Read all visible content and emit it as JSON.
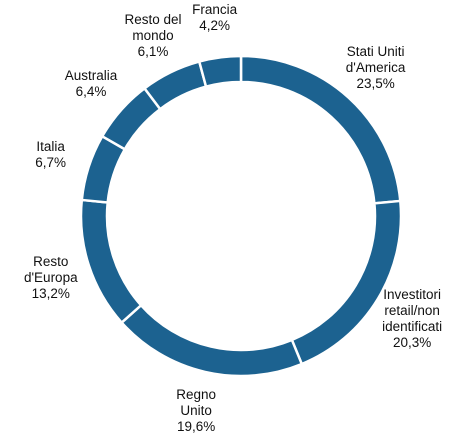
{
  "chart_data": {
    "type": "donut",
    "categories": [
      "Stati Uniti\nd'America",
      "Investitori\nretail/non\nidentificati",
      "Regno\nUnito",
      "Resto\nd'Europa",
      "Italia",
      "Australia",
      "Resto del\nmondo",
      "Francia"
    ],
    "values": [
      23.5,
      20.3,
      19.6,
      13.2,
      6.7,
      6.4,
      6.1,
      4.2
    ],
    "value_labels": [
      "23,5%",
      "20,3%",
      "19,6%",
      "13,2%",
      "6,7%",
      "6,4%",
      "6,1%",
      "4,2%"
    ],
    "color": "#1c6290"
  }
}
